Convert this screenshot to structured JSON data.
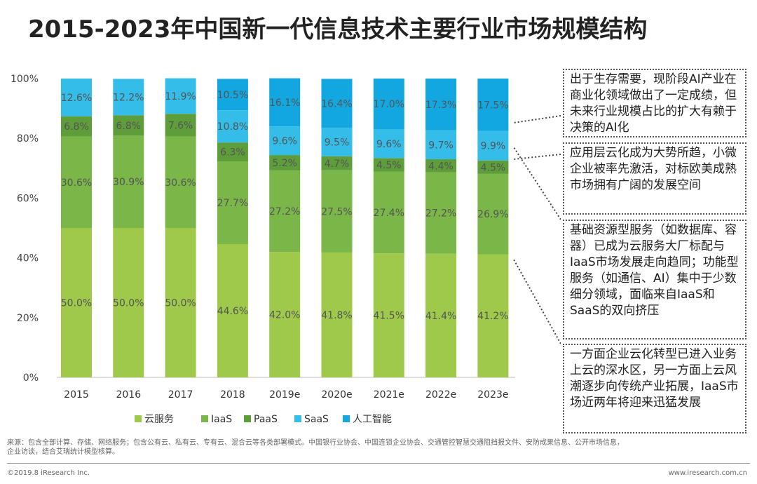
{
  "title": "2015-2023年中国新一代信息技术主要行业市场规模结构",
  "notes": [
    "出于生存需要，现阶段AI产业在商业化领域做出了一定成绩，但未来行业规模占比的扩大有赖于决策的AI化",
    "应用层云化成为大势所趋，小微企业被率先激活，对标欧美成熟市场拥有广阔的发展空间",
    "基础资源型服务（如数据库、容器）已成为云服务大厂标配与IaaS市场发展走向趋同；功能型服务（如通信、AI）集中于少数细分领域，面临来自IaaS和SaaS的双向挤压",
    "一方面企业云化转型已进入业务上云的深水区，另一方面上云风潮逐步向传统产业拓展，IaaS市场近两年将迎来迅猛发展"
  ],
  "footer": {
    "source": "来源：包含全部计算、存储、网络服务；包含公有云、私有云、专有云、混合云等各类部署模式。中国银行业协会、中国连锁企业协会、交通管控智慧交通阻挡报文件、安防成果信息、公开市场信息，企业访谈，结合艾瑞统计模型核算。",
    "copyright": "©2019.8 iResearch Inc.",
    "website": "www.iresearch.com.cn"
  },
  "chart_data": {
    "type": "bar",
    "stacked": true,
    "categories": [
      "2015",
      "2016",
      "2017",
      "2018",
      "2019e",
      "2020e",
      "2021e",
      "2022e",
      "2023e"
    ],
    "series": [
      {
        "name": "云服务",
        "color": "#9ec94a",
        "values": [
          50.0,
          50.0,
          50.0,
          44.6,
          42.0,
          41.8,
          41.5,
          41.4,
          41.2
        ]
      },
      {
        "name": "IaaS",
        "color": "#7ab648",
        "values": [
          30.6,
          30.9,
          30.6,
          27.7,
          27.2,
          27.5,
          27.4,
          27.2,
          26.9
        ]
      },
      {
        "name": "PaaS",
        "color": "#5e9e3a",
        "values": [
          6.8,
          6.8,
          7.6,
          6.3,
          5.2,
          4.7,
          4.5,
          4.4,
          4.5
        ]
      },
      {
        "name": "SaaS",
        "color": "#33bde8",
        "values": [
          12.6,
          12.2,
          11.9,
          10.8,
          9.6,
          9.5,
          9.6,
          9.7,
          9.9
        ]
      },
      {
        "name": "人工智能",
        "color": "#12a7e0",
        "values": [
          0,
          0,
          0,
          10.5,
          16.1,
          16.4,
          17.0,
          17.3,
          17.5
        ]
      }
    ],
    "labels": [
      [
        "50.0%",
        "50.0%",
        "50.0%",
        "44.6%",
        "42.0%",
        "41.8%",
        "41.5%",
        "41.4%",
        "41.2%"
      ],
      [
        "30.6%",
        "30.9%",
        "30.6%",
        "27.7%",
        "27.2%",
        "27.5%",
        "27.4%",
        "27.2%",
        "26.9%"
      ],
      [
        "6.8%",
        "6.8%",
        "7.6%",
        "6.3%",
        "5.2%",
        "4.7%",
        "4.5%",
        "4.4%",
        "4.5%"
      ],
      [
        "12.6%",
        "12.2%",
        "11.9%",
        "10.8%",
        "9.6%",
        "9.5%",
        "9.6%",
        "9.7%",
        "9.9%"
      ],
      [
        "",
        "",
        "",
        "10.5%",
        "16.1%",
        "16.4%",
        "17.0%",
        "17.3%",
        "17.5%"
      ]
    ],
    "yticks": [
      "0%",
      "20%",
      "40%",
      "60%",
      "80%",
      "100%"
    ],
    "ylim": [
      0,
      100
    ],
    "legend_position": "bottom",
    "grid": false
  }
}
